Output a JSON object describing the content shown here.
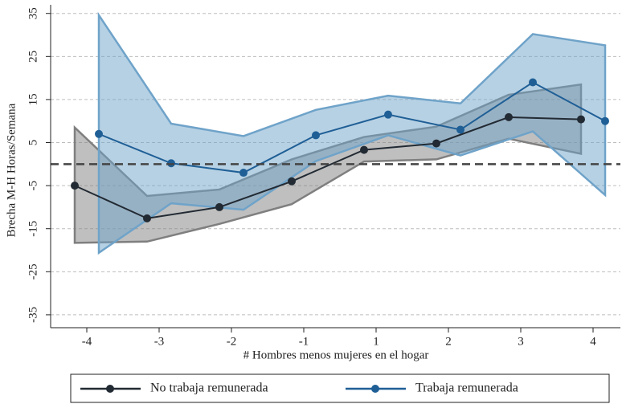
{
  "chart_data": {
    "type": "line",
    "x_label": "# Hombres menos mujeres en el hogar",
    "y_label": "Brecha M-H Horas/Semana",
    "categories": [
      "-4",
      "-3",
      "-2",
      "-1",
      "1",
      "2",
      "3",
      "4"
    ],
    "ylim": [
      -38,
      37
    ],
    "yticks": [
      35,
      25,
      15,
      5,
      -5,
      -15,
      -25,
      -35
    ],
    "grid": true,
    "hline": 0,
    "legend": "bottom",
    "series": [
      {
        "name": "No trabaja remunerada",
        "color": "#222a33",
        "band_color": "#7f7f7f",
        "values": [
          -5,
          -12.6,
          -10,
          -4,
          3.3,
          4.8,
          10.9,
          10.4
        ],
        "upper": [
          8.5,
          -7.4,
          -5.9,
          1.1,
          6.3,
          8.7,
          16.1,
          18.5
        ],
        "lower": [
          -18.3,
          -18,
          -13.9,
          -9.3,
          0.6,
          1.1,
          5.9,
          2.4
        ]
      },
      {
        "name": "Trabaja remunerada",
        "color": "#1f5f96",
        "band_color": "#6fa3c9",
        "values": [
          7,
          0.2,
          -2,
          6.7,
          11.5,
          8,
          19,
          10
        ],
        "upper": [
          34.6,
          9.4,
          6.5,
          12.6,
          15.9,
          14.1,
          30.2,
          27.6
        ],
        "lower": [
          -20.6,
          -9.1,
          -10.6,
          0.7,
          6.7,
          2,
          7.6,
          -7.2
        ]
      }
    ]
  }
}
